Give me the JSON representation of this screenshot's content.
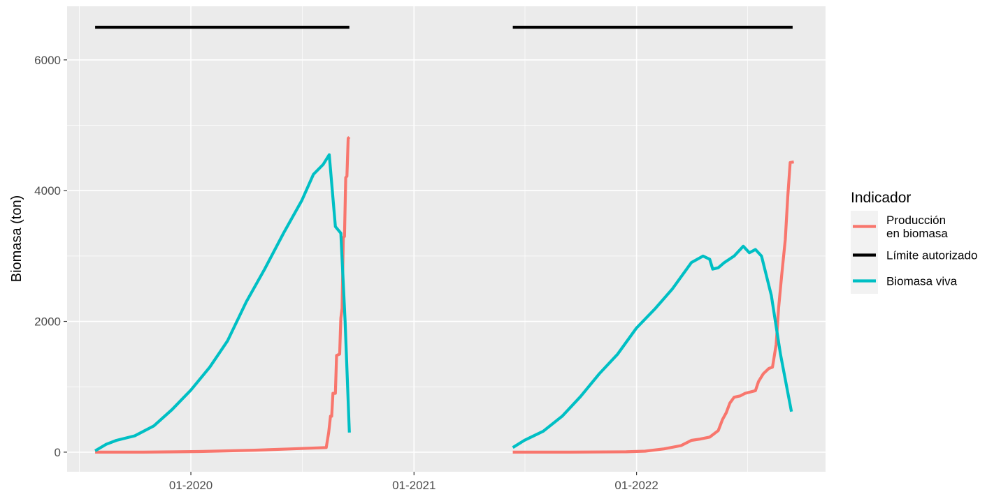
{
  "chart_data": {
    "type": "line",
    "title": "",
    "xlabel": "",
    "ylabel": "Biomasa (ton)",
    "x_ticks": [
      "01-2020",
      "01-2021",
      "01-2022"
    ],
    "y_ticks": [
      0,
      2000,
      4000,
      6000
    ],
    "ylim": [
      -300,
      6820
    ],
    "xlim": [
      "2019-06-12",
      "2022-11-07"
    ],
    "grid": true,
    "background": "#ebebeb",
    "legend": {
      "title": "Indicador",
      "placement": "right",
      "entries": [
        {
          "lines": [
            "Producción",
            "en biomasa"
          ],
          "color": "#f8766d"
        },
        {
          "lines": [
            "Límite autorizado"
          ],
          "color": "#000000"
        },
        {
          "lines": [
            "Biomasa viva"
          ],
          "color": "#00bfc4"
        }
      ]
    },
    "series": [
      {
        "name": "Producción en biomasa",
        "color": "#f8766d",
        "segments": [
          [
            [
              "2019-07-28",
              0
            ],
            [
              "2019-10-15",
              0
            ],
            [
              "2020-01-15",
              10
            ],
            [
              "2020-04-15",
              30
            ],
            [
              "2020-06-15",
              50
            ],
            [
              "2020-08-10",
              70
            ],
            [
              "2020-08-14",
              300
            ],
            [
              "2020-08-17",
              550
            ],
            [
              "2020-08-19",
              550
            ],
            [
              "2020-08-21",
              900
            ],
            [
              "2020-08-25",
              900
            ],
            [
              "2020-08-27",
              1480
            ],
            [
              "2020-09-01",
              1500
            ],
            [
              "2020-09-03",
              2050
            ],
            [
              "2020-09-05",
              2200
            ],
            [
              "2020-09-07",
              3280
            ],
            [
              "2020-09-09",
              3300
            ],
            [
              "2020-09-11",
              4200
            ],
            [
              "2020-09-13",
              4220
            ],
            [
              "2020-09-15",
              4800
            ],
            [
              "2020-09-17",
              4820
            ]
          ],
          [
            [
              "2021-06-12",
              0
            ],
            [
              "2021-09-15",
              0
            ],
            [
              "2021-12-15",
              5
            ],
            [
              "2022-01-15",
              15
            ],
            [
              "2022-02-15",
              50
            ],
            [
              "2022-03-15",
              100
            ],
            [
              "2022-04-01",
              180
            ],
            [
              "2022-04-15",
              200
            ],
            [
              "2022-05-01",
              230
            ],
            [
              "2022-05-15",
              330
            ],
            [
              "2022-05-22",
              500
            ],
            [
              "2022-05-28",
              600
            ],
            [
              "2022-06-03",
              750
            ],
            [
              "2022-06-10",
              840
            ],
            [
              "2022-06-20",
              860
            ],
            [
              "2022-06-28",
              900
            ],
            [
              "2022-07-15",
              940
            ],
            [
              "2022-07-20",
              1080
            ],
            [
              "2022-07-28",
              1200
            ],
            [
              "2022-08-06",
              1280
            ],
            [
              "2022-08-12",
              1300
            ],
            [
              "2022-08-18",
              1650
            ],
            [
              "2022-08-22",
              2200
            ],
            [
              "2022-08-27",
              2700
            ],
            [
              "2022-09-02",
              3250
            ],
            [
              "2022-09-06",
              3900
            ],
            [
              "2022-09-10",
              4430
            ],
            [
              "2022-09-16",
              4440
            ]
          ]
        ]
      },
      {
        "name": "Límite autorizado",
        "color": "#000000",
        "segments": [
          [
            [
              "2019-07-28",
              6500
            ],
            [
              "2020-09-17",
              6500
            ]
          ],
          [
            [
              "2021-06-12",
              6500
            ],
            [
              "2022-09-14",
              6500
            ]
          ]
        ]
      },
      {
        "name": "Biomasa viva",
        "color": "#00bfc4",
        "segments": [
          [
            [
              "2019-07-28",
              20
            ],
            [
              "2019-08-15",
              120
            ],
            [
              "2019-09-01",
              180
            ],
            [
              "2019-10-01",
              250
            ],
            [
              "2019-11-01",
              400
            ],
            [
              "2019-12-01",
              650
            ],
            [
              "2020-01-01",
              950
            ],
            [
              "2020-02-01",
              1300
            ],
            [
              "2020-03-01",
              1700
            ],
            [
              "2020-04-01",
              2300
            ],
            [
              "2020-05-01",
              2800
            ],
            [
              "2020-06-01",
              3350
            ],
            [
              "2020-07-01",
              3850
            ],
            [
              "2020-07-20",
              4250
            ],
            [
              "2020-08-05",
              4400
            ],
            [
              "2020-08-15",
              4550
            ],
            [
              "2020-08-25",
              3450
            ],
            [
              "2020-09-03",
              3350
            ],
            [
              "2020-09-10",
              2000
            ],
            [
              "2020-09-17",
              300
            ]
          ],
          [
            [
              "2021-06-12",
              70
            ],
            [
              "2021-07-01",
              180
            ],
            [
              "2021-08-01",
              320
            ],
            [
              "2021-09-01",
              550
            ],
            [
              "2021-10-01",
              850
            ],
            [
              "2021-11-01",
              1200
            ],
            [
              "2021-12-01",
              1500
            ],
            [
              "2022-01-01",
              1900
            ],
            [
              "2022-02-01",
              2200
            ],
            [
              "2022-03-01",
              2500
            ],
            [
              "2022-04-01",
              2900
            ],
            [
              "2022-04-20",
              3000
            ],
            [
              "2022-05-01",
              2950
            ],
            [
              "2022-05-06",
              2800
            ],
            [
              "2022-05-15",
              2820
            ],
            [
              "2022-05-25",
              2900
            ],
            [
              "2022-06-10",
              3000
            ],
            [
              "2022-06-25",
              3150
            ],
            [
              "2022-07-05",
              3050
            ],
            [
              "2022-07-15",
              3100
            ],
            [
              "2022-07-25",
              3000
            ],
            [
              "2022-08-10",
              2400
            ],
            [
              "2022-08-25",
              1500
            ],
            [
              "2022-09-12",
              620
            ]
          ]
        ]
      }
    ]
  }
}
